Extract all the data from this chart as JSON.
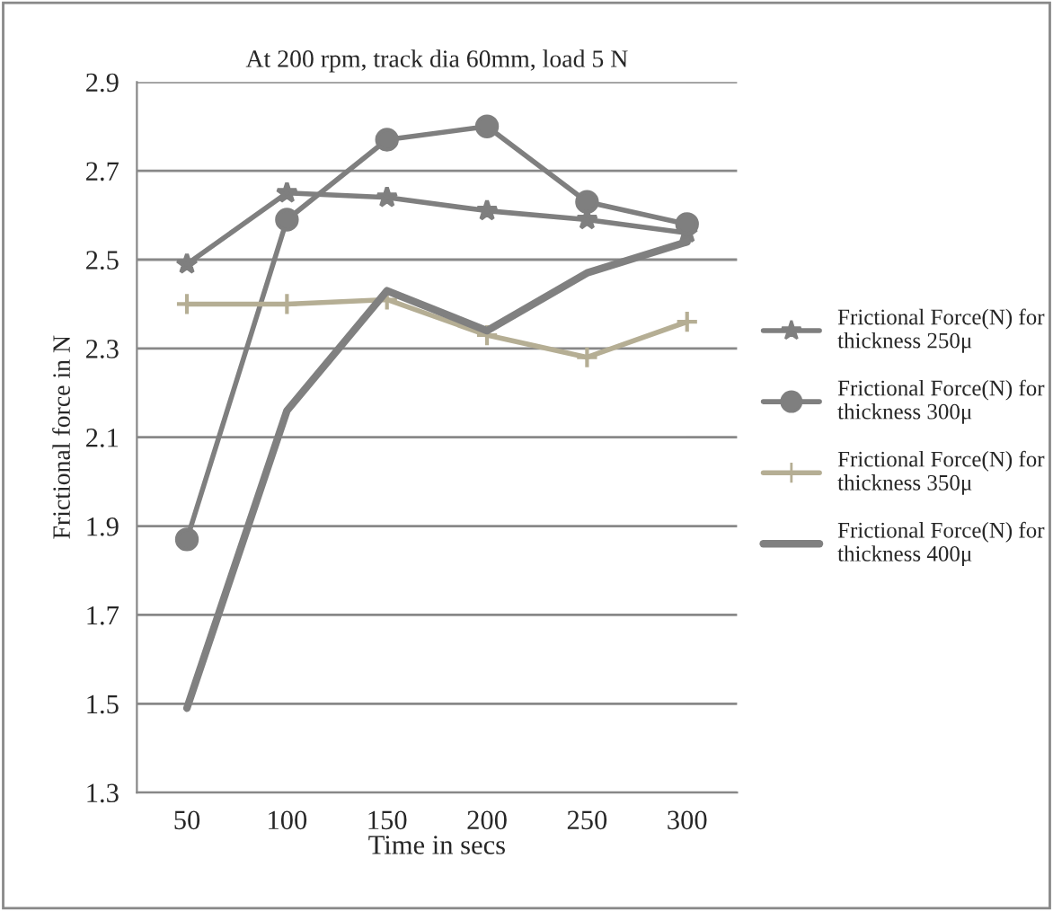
{
  "chart_data": {
    "type": "line",
    "title": "At 200 rpm, track dia 60mm, load 5 N",
    "xlabel": "Time in secs",
    "ylabel": "Frictional force in N",
    "categories": [
      "50",
      "100",
      "150",
      "200",
      "250",
      "300"
    ],
    "series": [
      {
        "name": "Frictional Force(N) for thickness 250μ",
        "color": "#7f7f7f",
        "marker": "star",
        "values": [
          2.49,
          2.65,
          2.64,
          2.61,
          2.59,
          2.56
        ]
      },
      {
        "name": "Frictional Force(N) for thickness 300μ",
        "color": "#7f7f7f",
        "marker": "circle",
        "values": [
          1.87,
          2.59,
          2.77,
          2.8,
          2.63,
          2.58
        ]
      },
      {
        "name": "Frictional Force(N) for thickness 350μ",
        "color": "#b5ae94",
        "marker": "cross",
        "values": [
          2.4,
          2.4,
          2.41,
          2.33,
          2.28,
          2.36
        ]
      },
      {
        "name": "Frictional Force(N) for thickness 400μ",
        "color": "#808080",
        "marker": "none",
        "values": [
          1.49,
          2.16,
          2.43,
          2.34,
          2.47,
          2.54
        ]
      }
    ],
    "ylim": [
      1.3,
      2.9
    ],
    "yticks": [
      1.3,
      1.5,
      1.7,
      1.9,
      2.1,
      2.3,
      2.5,
      2.7,
      2.9
    ],
    "grid": "y",
    "legend": "right"
  }
}
